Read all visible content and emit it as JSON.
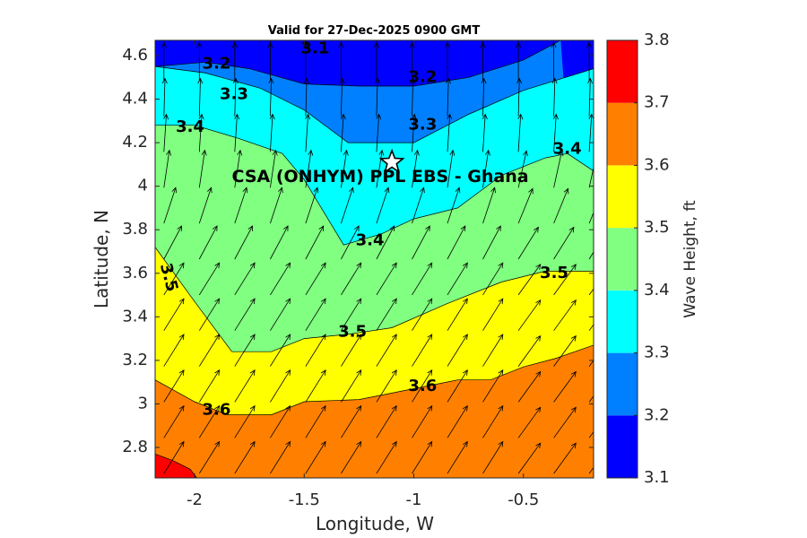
{
  "chart_data": {
    "type": "contour",
    "title": "Valid for 27-Dec-2025 0900 GMT",
    "xlabel": "Longitude, W",
    "ylabel": "Latitude, N",
    "xlim": [
      -2.18,
      -0.18
    ],
    "ylim": [
      2.66,
      4.67
    ],
    "xticks": [
      -2,
      -1.5,
      -1,
      -0.5
    ],
    "xtick_labels": [
      "-2",
      "-1.5",
      "-1",
      "-0.5"
    ],
    "yticks": [
      2.8,
      3,
      3.2,
      3.4,
      3.6,
      3.8,
      4,
      4.2,
      4.4,
      4.6
    ],
    "ytick_labels": [
      "2.8",
      "3",
      "3.2",
      "3.4",
      "3.6",
      "3.8",
      "4",
      "4.2",
      "4.4",
      "4.6"
    ],
    "colorbar": {
      "label": "Wave Height, ft",
      "ticks": [
        3.1,
        3.2,
        3.3,
        3.4,
        3.5,
        3.6,
        3.7,
        3.8
      ],
      "tick_labels": [
        "3.1",
        "3.2",
        "3.3",
        "3.4",
        "3.5",
        "3.6",
        "3.7",
        "3.8"
      ],
      "colors": [
        "#0000ff",
        "#0080ff",
        "#00ffff",
        "#80ff80",
        "#ffff00",
        "#ff8000",
        "#ff0000"
      ]
    },
    "levels": [
      3.1,
      3.2,
      3.3,
      3.4,
      3.5,
      3.6,
      3.7
    ],
    "contours": [
      {
        "level": 3.2,
        "points": [
          [
            -2.18,
            4.67
          ],
          [
            -2.18,
            4.55
          ],
          [
            -1.95,
            4.57
          ],
          [
            -1.75,
            4.54
          ],
          [
            -1.5,
            4.47
          ],
          [
            -1.25,
            4.46
          ],
          [
            -1.0,
            4.46
          ],
          [
            -0.75,
            4.5
          ],
          [
            -0.5,
            4.58
          ],
          [
            -0.33,
            4.67
          ]
        ]
      },
      {
        "level": 3.3,
        "points": [
          [
            -2.18,
            4.55
          ],
          [
            -1.95,
            4.52
          ],
          [
            -1.7,
            4.45
          ],
          [
            -1.5,
            4.35
          ],
          [
            -1.3,
            4.2
          ],
          [
            -1.0,
            4.2
          ],
          [
            -0.75,
            4.33
          ],
          [
            -0.5,
            4.44
          ],
          [
            -0.18,
            4.54
          ]
        ]
      },
      {
        "level": 3.4,
        "points": [
          [
            -2.18,
            4.28
          ],
          [
            -2.0,
            4.28
          ],
          [
            -1.8,
            4.22
          ],
          [
            -1.6,
            4.15
          ],
          [
            -1.5,
            4.03
          ],
          [
            -1.32,
            3.73
          ],
          [
            -1.15,
            3.78
          ],
          [
            -1.0,
            3.85
          ],
          [
            -0.8,
            3.9
          ],
          [
            -0.6,
            4.05
          ],
          [
            -0.4,
            4.13
          ],
          [
            -0.3,
            4.15
          ],
          [
            -0.18,
            4.07
          ]
        ]
      },
      {
        "level": 3.5,
        "points": [
          [
            -2.18,
            3.72
          ],
          [
            -2.0,
            3.47
          ],
          [
            -1.83,
            3.24
          ],
          [
            -1.65,
            3.24
          ],
          [
            -1.5,
            3.3
          ],
          [
            -1.3,
            3.32
          ],
          [
            -1.1,
            3.35
          ],
          [
            -0.85,
            3.46
          ],
          [
            -0.6,
            3.56
          ],
          [
            -0.4,
            3.61
          ],
          [
            -0.18,
            3.61
          ]
        ]
      },
      {
        "level": 3.6,
        "points": [
          [
            -2.18,
            3.11
          ],
          [
            -2.0,
            3.01
          ],
          [
            -1.85,
            2.95
          ],
          [
            -1.65,
            2.95
          ],
          [
            -1.5,
            3.01
          ],
          [
            -1.25,
            3.02
          ],
          [
            -1.0,
            3.07
          ],
          [
            -0.8,
            3.11
          ],
          [
            -0.65,
            3.11
          ],
          [
            -0.5,
            3.17
          ],
          [
            -0.35,
            3.21
          ],
          [
            -0.18,
            3.27
          ]
        ]
      },
      {
        "level": 3.7,
        "points": [
          [
            -2.18,
            2.77
          ],
          [
            -2.1,
            2.74
          ],
          [
            -2.02,
            2.7
          ],
          [
            -1.99,
            2.66
          ]
        ]
      }
    ],
    "contour_labels": [
      {
        "text": "3.1",
        "x": -1.45,
        "y": 4.63
      },
      {
        "text": "3.2",
        "x": -1.9,
        "y": 4.56
      },
      {
        "text": "3.2",
        "x": -0.96,
        "y": 4.5
      },
      {
        "text": "3.3",
        "x": -1.82,
        "y": 4.42
      },
      {
        "text": "3.3",
        "x": -0.96,
        "y": 4.28
      },
      {
        "text": "3.4",
        "x": -2.02,
        "y": 4.27
      },
      {
        "text": "3.4",
        "x": -0.3,
        "y": 4.17
      },
      {
        "text": "3.4",
        "x": -1.2,
        "y": 3.75
      },
      {
        "text": "3.5",
        "x": -2.12,
        "y": 3.58
      },
      {
        "text": "3.5",
        "x": -0.36,
        "y": 3.6
      },
      {
        "text": "3.5",
        "x": -1.28,
        "y": 3.33
      },
      {
        "text": "3.6",
        "x": -1.9,
        "y": 2.97
      },
      {
        "text": "3.6",
        "x": -0.96,
        "y": 3.08
      }
    ],
    "annotation": {
      "text": "CSA (ONHYM) PPL EBS  - Ghana",
      "star": {
        "x": -1.1,
        "y": 4.11
      }
    }
  }
}
